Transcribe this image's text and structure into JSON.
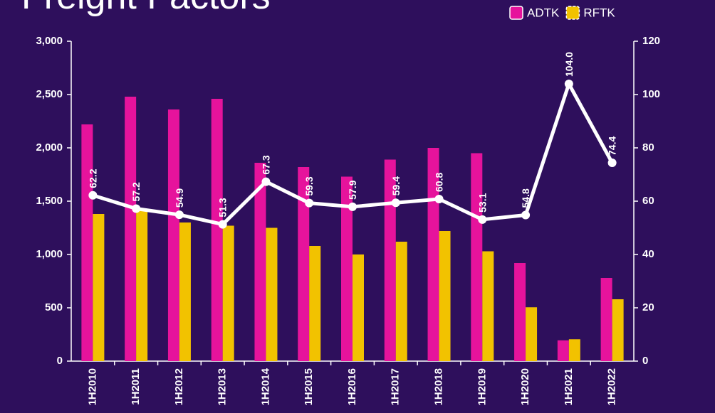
{
  "chart_data": {
    "type": "bar-line",
    "title": "Freight Factors",
    "categories": [
      "1H2010",
      "1H2011",
      "1H2012",
      "1H2013",
      "1H2014",
      "1H2015",
      "1H2016",
      "1H2017",
      "1H2018",
      "1H2019",
      "1H2020",
      "1H2021",
      "1H2022"
    ],
    "series": [
      {
        "name": "ADTK",
        "type": "bar",
        "color": "#e6139c",
        "values": [
          2220,
          2480,
          2360,
          2460,
          1860,
          1820,
          1730,
          1890,
          2000,
          1950,
          920,
          195,
          780
        ]
      },
      {
        "name": "RFTK",
        "type": "bar",
        "color": "#f2c200",
        "values": [
          1380,
          1420,
          1300,
          1270,
          1250,
          1080,
          1000,
          1120,
          1220,
          1030,
          505,
          205,
          580
        ]
      },
      {
        "type": "line",
        "axis": "y2",
        "color": "#ffffff",
        "values": [
          62.2,
          57.2,
          54.9,
          51.3,
          67.3,
          59.3,
          57.9,
          59.4,
          60.8,
          53.1,
          54.8,
          104.0,
          74.4
        ],
        "value_labels": [
          "62.2",
          "57.2",
          "54.9",
          "51.3",
          "67.3",
          "59.3",
          "57.9",
          "59.4",
          "60.8",
          "53.1",
          "54.8",
          "104.0",
          "74.4"
        ]
      }
    ],
    "ylim": [
      0,
      3000
    ],
    "yticks": [
      0,
      500,
      {
        "value": 1000,
        "label": "1,000"
      },
      {
        "value": 1500,
        "label": "1,500"
      },
      {
        "value": 2000,
        "label": "2,000"
      },
      {
        "value": 2500,
        "label": "2,500"
      },
      {
        "value": 3000,
        "label": "3,000"
      }
    ],
    "y2lim": [
      0,
      120
    ],
    "y2ticks": [
      0,
      20,
      40,
      60,
      80,
      100,
      120
    ],
    "legend": "upper right"
  }
}
